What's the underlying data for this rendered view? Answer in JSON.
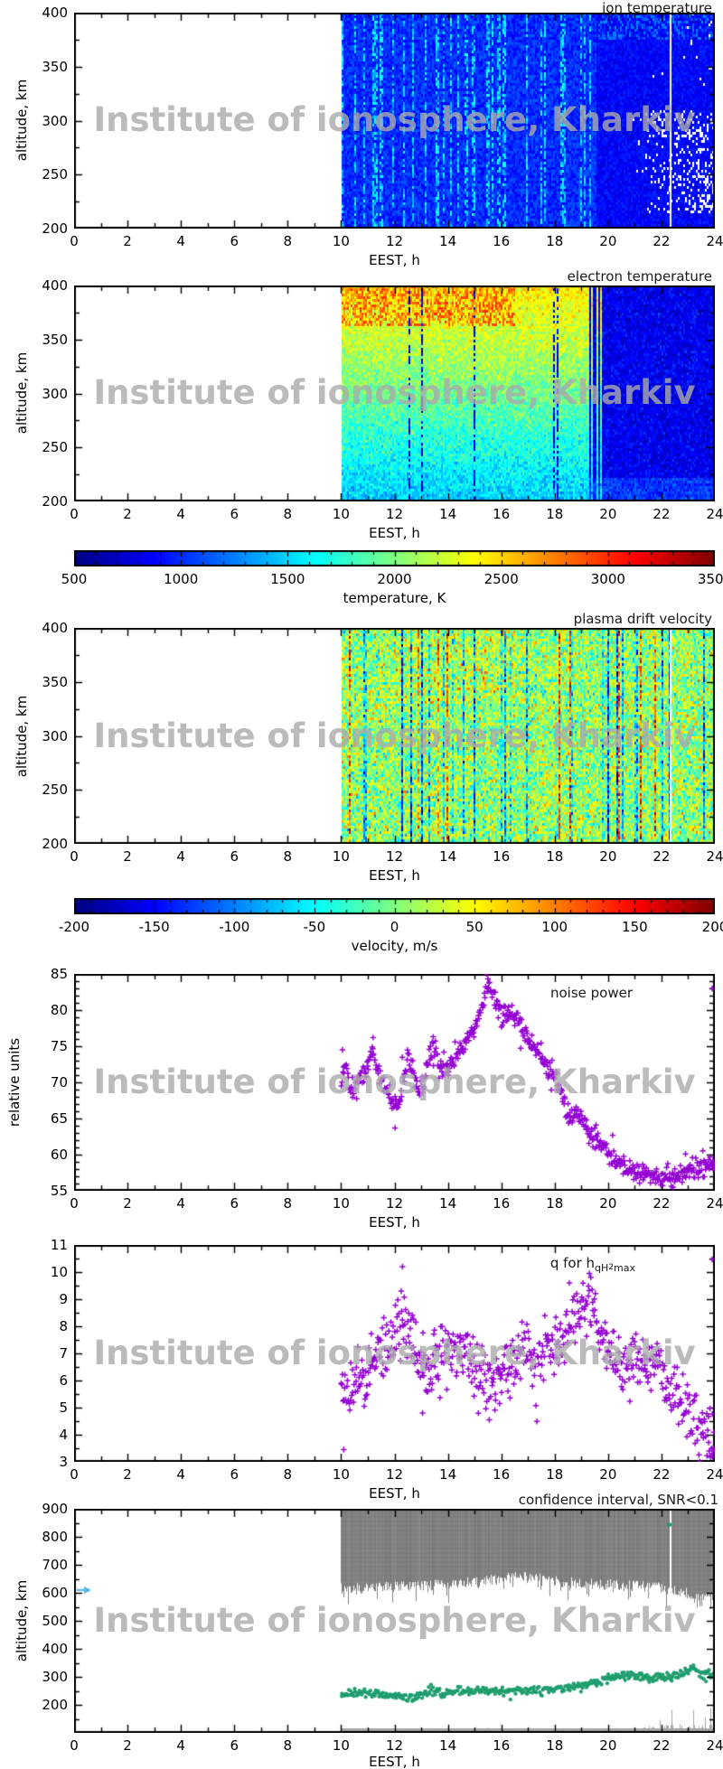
{
  "watermark": "Institute of ionosphere, Kharkiv",
  "colors": {
    "scatter_marker": "#9400d3",
    "h_marker": "#1f9e6e",
    "confidence_fill": "#878787",
    "clutter": "#a6a6a6",
    "arrow_marker": "#54b8e8",
    "axis": "#000000",
    "title_text": "#1a1a1a",
    "watermark_gray": "#ababab",
    "background": "#ffffff"
  },
  "chart_data": [
    {
      "id": "ion_temperature",
      "type": "heatmap",
      "title": "ion temperature",
      "xlabel": "EEST, h",
      "ylabel": "altitude, km",
      "x_range": [
        0,
        24
      ],
      "y_range": [
        200,
        400
      ],
      "xticks": [
        0,
        2,
        4,
        6,
        8,
        10,
        12,
        14,
        16,
        18,
        20,
        22,
        24
      ],
      "yticks": [
        200,
        250,
        300,
        350,
        400
      ],
      "data_coverage_h": [
        10,
        24
      ],
      "value_units": "K",
      "value_scale_range": [
        500,
        3500
      ],
      "pattern": {
        "day_base_K": [
          850,
          1150
        ],
        "day_streak_K": [
          1300,
          1750
        ],
        "day_streak_prob": 0.3,
        "night_start_h": 19.5,
        "night_base_K": [
          750,
          1000
        ],
        "missing_data_after_h": 20.8,
        "missing_alt_km": [
          215,
          310
        ],
        "gap_line_h": 22.3
      },
      "seed": 101
    },
    {
      "id": "electron_temperature",
      "type": "heatmap",
      "title": "electron temperature",
      "xlabel": "EEST, h",
      "ylabel": "altitude, km",
      "x_range": [
        0,
        24
      ],
      "y_range": [
        200,
        400
      ],
      "xticks": [
        0,
        2,
        4,
        6,
        8,
        10,
        12,
        14,
        16,
        18,
        20,
        22,
        24
      ],
      "yticks": [
        200,
        250,
        300,
        350,
        400
      ],
      "data_coverage_h": [
        10,
        24
      ],
      "value_units": "K",
      "value_scale_range": [
        500,
        3500
      ],
      "pattern": {
        "day_bottom_K": [
          1400,
          1650
        ],
        "day_top_K": [
          2100,
          2600
        ],
        "hot_top_until_h": 16.5,
        "hot_top_K": [
          2600,
          3000
        ],
        "dark_streak_prob": 0.09,
        "dark_streak_K": [
          600,
          1000
        ],
        "night_start_h": [
          18.9,
          19.9
        ],
        "night_K": [
          780,
          1080
        ]
      },
      "seed": 202
    },
    {
      "id": "temperature_colorbar",
      "type": "colorbar",
      "label": "temperature, K",
      "range": [
        500,
        3500
      ],
      "ticks": [
        500,
        1000,
        1500,
        2000,
        2500,
        3000,
        3500
      ],
      "minor_step": 100
    },
    {
      "id": "plasma_drift_velocity",
      "type": "heatmap",
      "title": "plasma drift velocity",
      "xlabel": "EEST, h",
      "ylabel": "altitude, km",
      "x_range": [
        0,
        24
      ],
      "y_range": [
        200,
        400
      ],
      "xticks": [
        0,
        2,
        4,
        6,
        8,
        10,
        12,
        14,
        16,
        18,
        20,
        22,
        24
      ],
      "yticks": [
        200,
        250,
        300,
        350,
        400
      ],
      "data_coverage_h": [
        10,
        24
      ],
      "value_units": "m/s",
      "value_scale_range": [
        -200,
        200
      ],
      "pattern": {
        "base_ms": [
          -45,
          45
        ],
        "streak_prob": 0.17,
        "pos_streak_ms": [
          70,
          200
        ],
        "neg_streak_ms": [
          -200,
          -70
        ],
        "gap_line_h": 22.3
      },
      "seed": 303
    },
    {
      "id": "velocity_colorbar",
      "type": "colorbar",
      "label": "velocity, m/s",
      "range": [
        -200,
        200
      ],
      "ticks": [
        -200,
        -150,
        -100,
        -50,
        0,
        50,
        100,
        150,
        200
      ],
      "minor_step": 10
    },
    {
      "id": "noise_power",
      "type": "scatter",
      "title": "noise power",
      "xlabel": "EEST, h",
      "ylabel": "relative units",
      "marker": "plus",
      "x_range": [
        0,
        24
      ],
      "y_range": [
        55,
        85
      ],
      "xticks": [
        0,
        2,
        4,
        6,
        8,
        10,
        12,
        14,
        16,
        18,
        20,
        22,
        24
      ],
      "yticks": [
        55,
        60,
        65,
        70,
        75,
        80,
        85
      ],
      "data_coverage_h": [
        10,
        24
      ],
      "points_per_hour": 42,
      "spread": 0.7,
      "trend": [
        [
          10,
          70.4
        ],
        [
          10.15,
          72.3
        ],
        [
          10.3,
          69.2
        ],
        [
          10.6,
          69.6
        ],
        [
          10.9,
          70.8
        ],
        [
          11.15,
          74.8
        ],
        [
          11.3,
          72.6
        ],
        [
          11.5,
          70.2
        ],
        [
          11.75,
          68.9
        ],
        [
          12.0,
          66.6
        ],
        [
          12.2,
          68.0
        ],
        [
          12.5,
          73.8
        ],
        [
          12.7,
          71.2
        ],
        [
          12.95,
          68.6
        ],
        [
          13.2,
          71.9
        ],
        [
          13.45,
          75.3
        ],
        [
          13.7,
          71.6
        ],
        [
          14.0,
          72.4
        ],
        [
          14.3,
          73.3
        ],
        [
          14.6,
          74.8
        ],
        [
          15.0,
          77.6
        ],
        [
          15.3,
          80.8
        ],
        [
          15.55,
          83.2
        ],
        [
          15.8,
          81.2
        ],
        [
          16.0,
          79.4
        ],
        [
          16.3,
          79.9
        ],
        [
          16.6,
          78.6
        ],
        [
          17.0,
          76.6
        ],
        [
          17.4,
          74.2
        ],
        [
          17.7,
          72.3
        ],
        [
          18.0,
          70.1
        ],
        [
          18.25,
          68.9
        ],
        [
          18.45,
          65.6
        ],
        [
          18.65,
          65.1
        ],
        [
          18.85,
          66.4
        ],
        [
          19.1,
          64.3
        ],
        [
          19.4,
          62.4
        ],
        [
          19.7,
          61.0
        ],
        [
          20.0,
          59.9
        ],
        [
          20.4,
          58.6
        ],
        [
          20.8,
          57.9
        ],
        [
          21.2,
          57.3
        ],
        [
          21.7,
          56.9
        ],
        [
          22.2,
          56.8
        ],
        [
          22.7,
          57.2
        ],
        [
          23.1,
          57.6
        ],
        [
          23.5,
          58.1
        ],
        [
          24,
          58.9
        ]
      ],
      "outliers": [
        [
          10.05,
          74.5
        ],
        [
          11.2,
          76.2
        ],
        [
          12.02,
          63.7
        ],
        [
          13.45,
          76.3
        ],
        [
          15.5,
          84.3
        ],
        [
          19.55,
          64.1
        ],
        [
          22.9,
          60.1
        ]
      ],
      "seed": 404
    },
    {
      "id": "q_factor",
      "type": "scatter",
      "title_prefix": "q for h",
      "title_sub": "qH",
      "title_sup": "2",
      "title_sub2": "max",
      "xlabel": "EEST, h",
      "ylabel": "",
      "marker": "plus",
      "x_range": [
        0,
        24
      ],
      "y_range": [
        3,
        11
      ],
      "xticks": [
        0,
        2,
        4,
        6,
        8,
        10,
        12,
        14,
        16,
        18,
        20,
        22,
        24
      ],
      "yticks": [
        3,
        4,
        5,
        6,
        7,
        8,
        9,
        10,
        11
      ],
      "data_coverage_h": [
        10,
        24
      ],
      "points_per_hour": 42,
      "spread": 0.55,
      "trend": [
        [
          10,
          5.9
        ],
        [
          10.2,
          5.3
        ],
        [
          10.5,
          5.6
        ],
        [
          10.8,
          5.9
        ],
        [
          11.1,
          6.5
        ],
        [
          11.4,
          7.1
        ],
        [
          11.7,
          7.4
        ],
        [
          12.0,
          7.6
        ],
        [
          12.3,
          8.2
        ],
        [
          12.55,
          7.9
        ],
        [
          12.8,
          7.1
        ],
        [
          13.05,
          6.5
        ],
        [
          13.3,
          6.3
        ],
        [
          13.6,
          6.6
        ],
        [
          13.9,
          6.9
        ],
        [
          14.2,
          7.2
        ],
        [
          14.5,
          7.0
        ],
        [
          14.8,
          6.6
        ],
        [
          15.1,
          6.2
        ],
        [
          15.4,
          5.9
        ],
        [
          15.7,
          5.8
        ],
        [
          16.0,
          6.3
        ],
        [
          16.4,
          6.8
        ],
        [
          16.8,
          7.0
        ],
        [
          17.2,
          6.9
        ],
        [
          17.6,
          7.1
        ],
        [
          18.0,
          7.3
        ],
        [
          18.4,
          7.9
        ],
        [
          18.8,
          8.6
        ],
        [
          19.1,
          9.0
        ],
        [
          19.35,
          8.9
        ],
        [
          19.6,
          8.3
        ],
        [
          19.9,
          7.4
        ],
        [
          20.2,
          6.7
        ],
        [
          20.5,
          6.3
        ],
        [
          20.9,
          6.5
        ],
        [
          21.3,
          6.7
        ],
        [
          21.7,
          6.4
        ],
        [
          22.1,
          6.1
        ],
        [
          22.5,
          5.6
        ],
        [
          22.9,
          5.0
        ],
        [
          23.3,
          4.5
        ],
        [
          23.6,
          4.0
        ],
        [
          24,
          4.1
        ]
      ],
      "outliers": [
        [
          10.1,
          3.45
        ],
        [
          12.3,
          10.2
        ],
        [
          12.25,
          9.3
        ],
        [
          19.3,
          9.95
        ],
        [
          13.05,
          4.8
        ],
        [
          15.55,
          4.55
        ],
        [
          23.9,
          3.3
        ]
      ],
      "seed": 505
    },
    {
      "id": "confidence_interval",
      "type": "region_scatter",
      "title": "confidence interval, SNR<0.1",
      "label_prefix": "h",
      "label_sub": "qH",
      "label_sup": "2",
      "label_sub2": "max",
      "xlabel": "EEST, h",
      "ylabel": "altitude, km",
      "x_range": [
        0,
        24
      ],
      "y_range": [
        100,
        900
      ],
      "xticks": [
        0,
        2,
        4,
        6,
        8,
        10,
        12,
        14,
        16,
        18,
        20,
        22,
        24
      ],
      "yticks": [
        200,
        300,
        400,
        500,
        600,
        700,
        800,
        900
      ],
      "data_coverage_h": [
        10,
        24
      ],
      "gray_region": {
        "top_km": 900,
        "edge_trend": [
          [
            10,
            615
          ],
          [
            11,
            618
          ],
          [
            12,
            622
          ],
          [
            13,
            626
          ],
          [
            14,
            630
          ],
          [
            15,
            638
          ],
          [
            16,
            648
          ],
          [
            16.8,
            662
          ],
          [
            17.4,
            652
          ],
          [
            18,
            640
          ],
          [
            19,
            634
          ],
          [
            20,
            629
          ],
          [
            21,
            624
          ],
          [
            22,
            618
          ],
          [
            22.6,
            604
          ],
          [
            23.2,
            592
          ],
          [
            24,
            585
          ]
        ],
        "edge_noise_km": 20,
        "spike_depth_km": 55,
        "spike_prob": 0.13,
        "gap_line_h": 22.3
      },
      "h_max_trend": [
        [
          10,
          238
        ],
        [
          10.5,
          243
        ],
        [
          11,
          240
        ],
        [
          11.5,
          237
        ],
        [
          12,
          233
        ],
        [
          12.5,
          228
        ],
        [
          12.8,
          222
        ],
        [
          13,
          246
        ],
        [
          13.5,
          244
        ],
        [
          14,
          241
        ],
        [
          14.5,
          247
        ],
        [
          15,
          251
        ],
        [
          15.5,
          249
        ],
        [
          16,
          247
        ],
        [
          16.5,
          251
        ],
        [
          17,
          250
        ],
        [
          17.5,
          254
        ],
        [
          18,
          257
        ],
        [
          18.5,
          263
        ],
        [
          19,
          269
        ],
        [
          19.5,
          278
        ],
        [
          20,
          290
        ],
        [
          20.4,
          303
        ],
        [
          20.8,
          307
        ],
        [
          21.2,
          300
        ],
        [
          21.6,
          297
        ],
        [
          22,
          301
        ],
        [
          22.5,
          304
        ],
        [
          23,
          318
        ],
        [
          23.2,
          330
        ],
        [
          23.5,
          312
        ],
        [
          24,
          308
        ]
      ],
      "h_max_spread_km": 7,
      "special_point": [
        22.3,
        843
      ],
      "arrow_marker_alt_km": 610,
      "clutter": {
        "alt_base_km": [
          100,
          118
        ],
        "taller_after_h": 20,
        "max_alt_km": 190
      },
      "seed": 606
    }
  ]
}
